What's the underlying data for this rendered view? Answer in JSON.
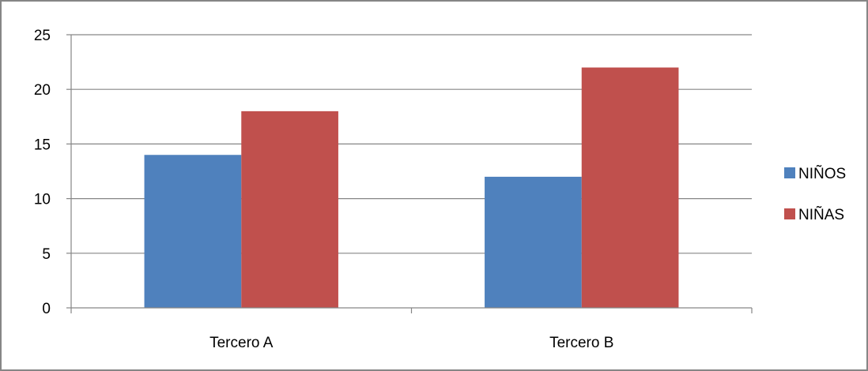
{
  "chart_data": {
    "type": "bar",
    "categories": [
      "Tercero A",
      "Tercero B"
    ],
    "series": [
      {
        "name": "NIÑOS",
        "values": [
          14,
          12
        ],
        "color": "#4F81BD"
      },
      {
        "name": "NIÑAS",
        "values": [
          18,
          22
        ],
        "color": "#C0504D"
      }
    ],
    "ylim": [
      0,
      25
    ],
    "yticks": [
      "0",
      "5",
      "10",
      "15",
      "20",
      "25"
    ],
    "ytick_values": [
      0,
      5,
      10,
      15,
      20,
      25
    ],
    "grid": true,
    "legend_position": "right",
    "title": "",
    "xlabel": "",
    "ylabel": ""
  },
  "colors": {
    "gridline": "#868686",
    "frame": "#868686"
  }
}
